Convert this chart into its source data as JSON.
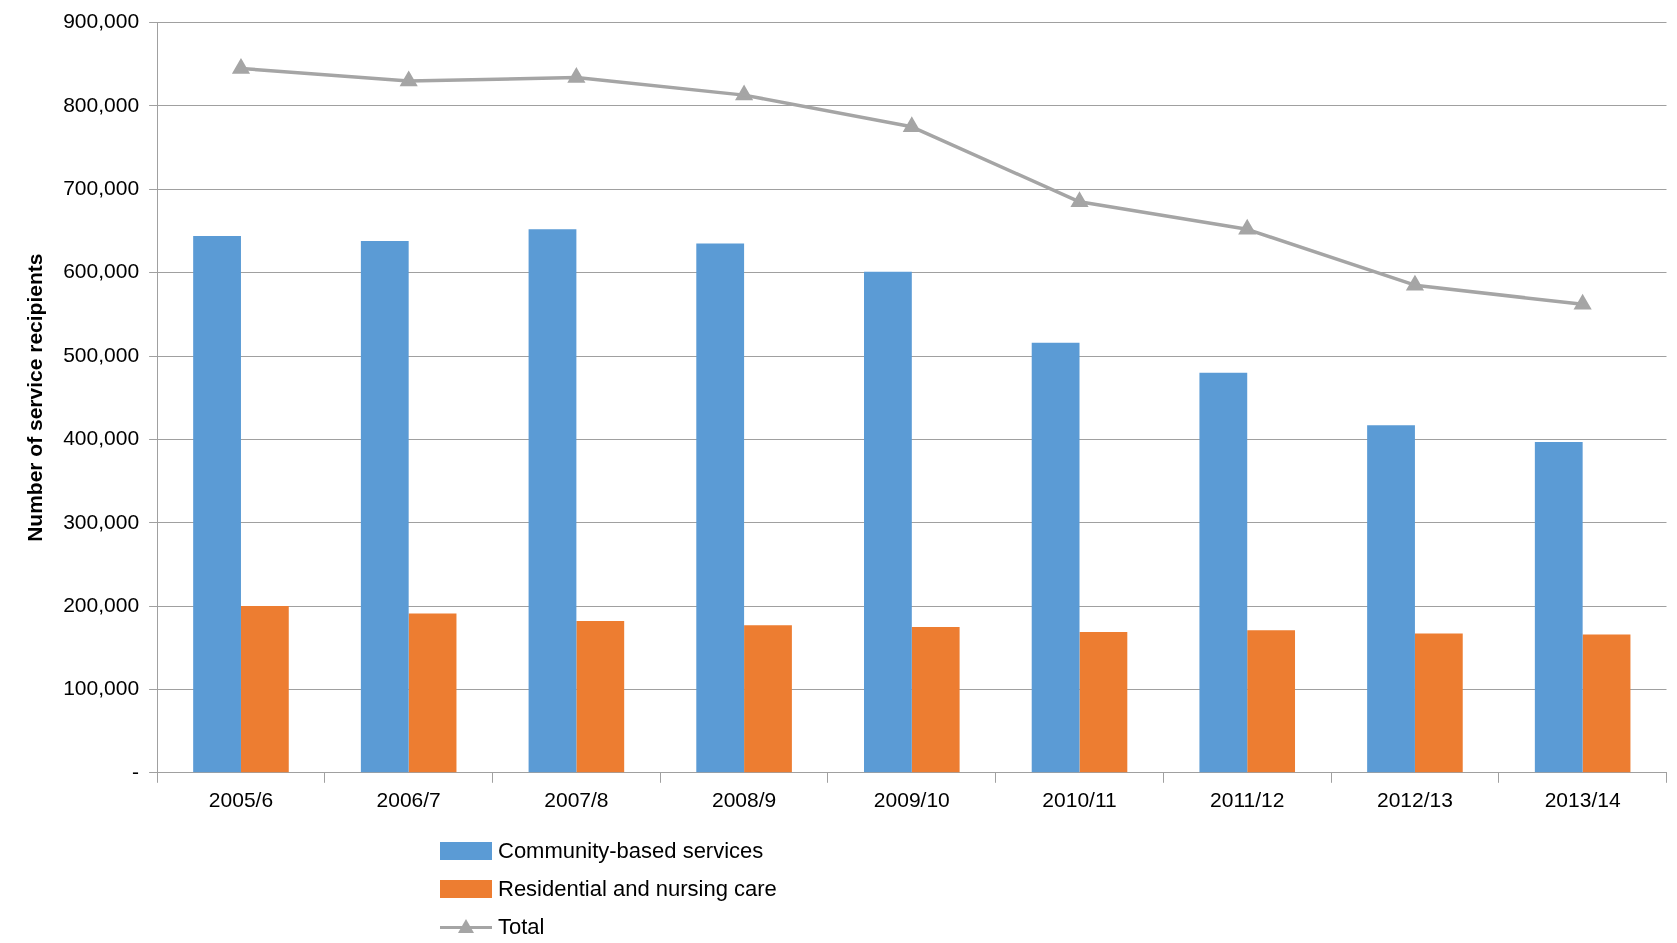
{
  "chart_data": {
    "type": "bar",
    "ylabel": "Number of service recipients",
    "categories": [
      "2005/6",
      "2006/7",
      "2007/8",
      "2008/9",
      "2009/10",
      "2010/11",
      "2011/12",
      "2012/13",
      "2013/14"
    ],
    "series": [
      {
        "name": "Community-based services",
        "color": "#5b9bd5",
        "values": [
          644000,
          638000,
          652000,
          635000,
          601000,
          516000,
          480000,
          417000,
          397000
        ]
      },
      {
        "name": "Residential and nursing care",
        "color": "#ed7d31",
        "values": [
          200000,
          191000,
          182000,
          177000,
          175000,
          169000,
          171000,
          167000,
          166000
        ]
      },
      {
        "name": "Total",
        "type": "line",
        "color": "#a5a5a5",
        "marker": "triangle",
        "values": [
          845000,
          830000,
          834000,
          813000,
          775000,
          685000,
          652000,
          585000,
          562000
        ]
      }
    ],
    "ylim": [
      0,
      900000
    ],
    "yticks": [
      {
        "value": 0,
        "label": "-"
      },
      {
        "value": 100000,
        "label": "100,000"
      },
      {
        "value": 200000,
        "label": "200,000"
      },
      {
        "value": 300000,
        "label": "300,000"
      },
      {
        "value": 400000,
        "label": "400,000"
      },
      {
        "value": 500000,
        "label": "500,000"
      },
      {
        "value": 600000,
        "label": "600,000"
      },
      {
        "value": 700000,
        "label": "700,000"
      },
      {
        "value": 800000,
        "label": "800,000"
      },
      {
        "value": 900000,
        "label": "900,000"
      }
    ],
    "grid": "y",
    "legend": "bottom"
  }
}
